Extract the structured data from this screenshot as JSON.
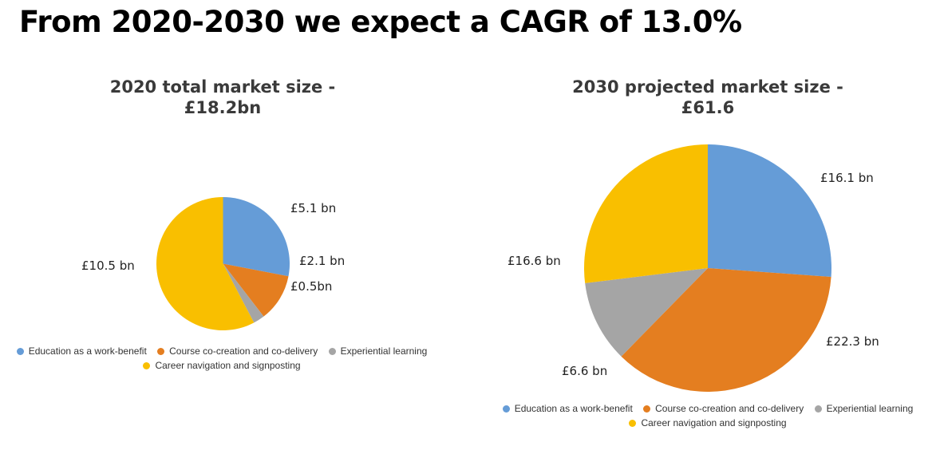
{
  "header": {
    "title": "From 2020-2030 we expect a CAGR of 13.0%"
  },
  "colors": {
    "blue": "#659CD7",
    "orange": "#E47E20",
    "gray": "#A5A5A5",
    "yellow": "#F9BF00"
  },
  "chart_data": [
    {
      "type": "pie",
      "title_line1": "2020 total market size -",
      "title_line2": "£18.2bn",
      "categories": [
        "Education as a work-benefit",
        "Course co-creation and co-delivery",
        "Experiential learning",
        "Career navigation and signposting"
      ],
      "values": [
        5.1,
        2.1,
        0.5,
        10.5
      ],
      "data_labels": [
        "£5.1 bn",
        "£2.1 bn",
        "£0.5bn",
        "£10.5 bn"
      ],
      "unit": "£ bn",
      "legend_position": "bottom"
    },
    {
      "type": "pie",
      "title_line1": "2030 projected market size -",
      "title_line2": "£61.6",
      "categories": [
        "Education as a work-benefit",
        "Course co-creation and co-delivery",
        "Experiential learning",
        "Career navigation and signposting"
      ],
      "values": [
        16.1,
        22.3,
        6.6,
        16.6
      ],
      "data_labels": [
        "£16.1 bn",
        "£22.3 bn",
        "£6.6 bn",
        "£16.6 bn"
      ],
      "unit": "£ bn",
      "legend_position": "bottom"
    }
  ]
}
